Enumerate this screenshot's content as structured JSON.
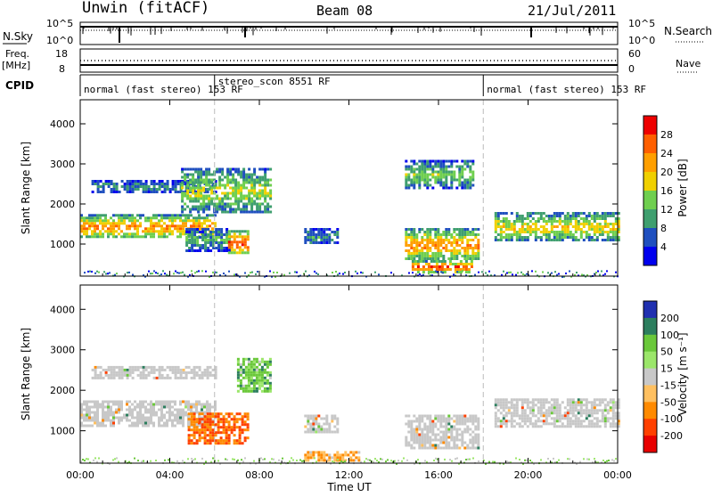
{
  "header": {
    "station": "Unwin (fitACF)",
    "beam": "Beam 08",
    "date": "21/Jul/2011"
  },
  "noise_panel": {
    "left_label": "N.Sky",
    "right_label": "N.Search",
    "ticks": [
      "10^5",
      "10^0"
    ]
  },
  "freq_panel": {
    "left_label": "Freq.",
    "left_unit": "[MHz]",
    "left_ticks": [
      "18",
      "8"
    ],
    "right_label": "Nave",
    "right_ticks": [
      "60",
      "0"
    ]
  },
  "cpid_panel": {
    "label": "CPID",
    "segments": [
      {
        "start_h": 0,
        "end_h": 6,
        "text": "normal (fast stereo) 153 RF"
      },
      {
        "start_h": 6,
        "end_h": 18,
        "text": "stereo_scon 8551 RF"
      },
      {
        "start_h": 18,
        "end_h": 24,
        "text": "normal (fast stereo) 153 RF"
      }
    ]
  },
  "x_axis": {
    "label": "Time UT",
    "ticks": [
      "00:00",
      "04:00",
      "08:00",
      "12:00",
      "16:00",
      "20:00",
      "00:00"
    ]
  },
  "y_axis": {
    "label": "Slant Range [km]",
    "ticks": [
      "1000",
      "2000",
      "3000",
      "4000"
    ]
  },
  "power_colorbar": {
    "label": "Power [dB]",
    "ticks": [
      "4",
      "8",
      "12",
      "16",
      "20",
      "24",
      "28"
    ],
    "colors": [
      "#0000ee",
      "#1f4fbf",
      "#3f9f6f",
      "#6fcf4f",
      "#f0d000",
      "#ff9f00",
      "#ff5f00",
      "#ee0000"
    ]
  },
  "velocity_colorbar": {
    "label": "Velocity [m s⁻¹]",
    "ticks": [
      "200",
      "100",
      "50",
      "15",
      "-15",
      "-50",
      "-100",
      "-200"
    ],
    "colors": [
      "#2030b0",
      "#2c7e5e",
      "#6ac83a",
      "#9be66a",
      "#c8c8c8",
      "#ffc060",
      "#ff8a00",
      "#ff4000",
      "#e80000"
    ]
  },
  "chart_data": {
    "type": "heatmap",
    "title": "Unwin (fitACF) Beam 08 21/Jul/2011",
    "xlabel": "Time UT",
    "ylabel": "Slant Range [km]",
    "xlim": [
      0,
      24
    ],
    "ylim": [
      200,
      4600
    ],
    "panels": [
      {
        "name": "Power [dB]",
        "regions": [
          {
            "t0": 0.0,
            "t1": 6.0,
            "r0": 1150,
            "r1": 1750,
            "value": 20
          },
          {
            "t0": 0.5,
            "t1": 6.0,
            "r0": 2300,
            "r1": 2600,
            "value": 8
          },
          {
            "t0": 4.5,
            "t1": 8.5,
            "r0": 1800,
            "r1": 2900,
            "value": 14
          },
          {
            "t0": 4.7,
            "t1": 6.7,
            "r0": 850,
            "r1": 1400,
            "value": 10
          },
          {
            "t0": 6.6,
            "t1": 7.5,
            "r0": 750,
            "r1": 1350,
            "value": 24
          },
          {
            "t0": 10.0,
            "t1": 11.5,
            "r0": 1000,
            "r1": 1400,
            "value": 8
          },
          {
            "t0": 14.5,
            "t1": 17.8,
            "r0": 600,
            "r1": 1400,
            "value": 20
          },
          {
            "t0": 14.8,
            "t1": 17.5,
            "r0": 300,
            "r1": 600,
            "value": 24
          },
          {
            "t0": 14.5,
            "t1": 17.5,
            "r0": 2400,
            "r1": 3100,
            "value": 12
          },
          {
            "t0": 18.5,
            "t1": 24.0,
            "r0": 1100,
            "r1": 1800,
            "value": 16
          }
        ]
      },
      {
        "name": "Velocity [m s⁻¹]",
        "regions": [
          {
            "t0": 0.0,
            "t1": 6.0,
            "r0": 1150,
            "r1": 1750,
            "value": 0
          },
          {
            "t0": 0.5,
            "t1": 6.0,
            "r0": 2300,
            "r1": 2600,
            "value": 0
          },
          {
            "t0": 4.8,
            "t1": 7.5,
            "r0": 700,
            "r1": 1450,
            "value": -100
          },
          {
            "t0": 7.0,
            "t1": 8.5,
            "r0": 2000,
            "r1": 2800,
            "value": 50
          },
          {
            "t0": 10.0,
            "t1": 11.5,
            "r0": 1000,
            "r1": 1400,
            "value": 0
          },
          {
            "t0": 14.5,
            "t1": 17.8,
            "r0": 600,
            "r1": 1400,
            "value": 0
          },
          {
            "t0": 10.0,
            "t1": 12.5,
            "r0": 300,
            "r1": 500,
            "value": -50
          },
          {
            "t0": 18.5,
            "t1": 24.0,
            "r0": 1100,
            "r1": 1800,
            "value": 0
          }
        ]
      }
    ]
  }
}
